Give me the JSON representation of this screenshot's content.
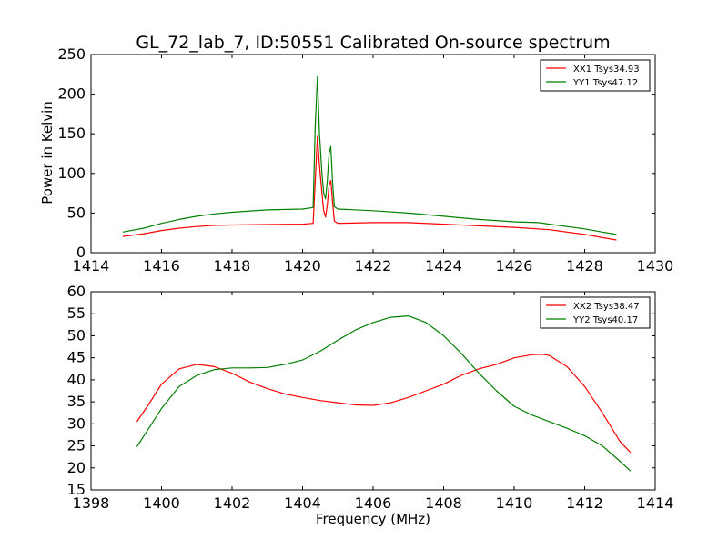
{
  "chart_data": [
    {
      "type": "line",
      "title": "GL_72_lab_7, ID:50551 Calibrated On-source spectrum",
      "xlabel": "",
      "ylabel": "Power in Kelvin",
      "xlim": [
        1414,
        1430
      ],
      "ylim": [
        0,
        250
      ],
      "xticks": [
        1414,
        1416,
        1418,
        1420,
        1422,
        1424,
        1426,
        1428,
        1430
      ],
      "yticks": [
        0,
        50,
        100,
        150,
        200,
        250
      ],
      "grid": false,
      "legend_position": "top-right",
      "series": [
        {
          "name": "XX1 Tsys34.93",
          "color": "#ff0000",
          "points": [
            [
              1414.9,
              20.5
            ],
            [
              1415.5,
              24
            ],
            [
              1416,
              28
            ],
            [
              1416.5,
              31
            ],
            [
              1417,
              33
            ],
            [
              1417.5,
              34.5
            ],
            [
              1418,
              35
            ],
            [
              1419,
              35.5
            ],
            [
              1420,
              36
            ],
            [
              1420.3,
              37
            ],
            [
              1420.36,
              90
            ],
            [
              1420.42,
              147
            ],
            [
              1420.48,
              110
            ],
            [
              1420.55,
              75
            ],
            [
              1420.6,
              53
            ],
            [
              1420.65,
              45
            ],
            [
              1420.7,
              60
            ],
            [
              1420.75,
              85
            ],
            [
              1420.8,
              91
            ],
            [
              1420.85,
              65
            ],
            [
              1420.9,
              40
            ],
            [
              1421,
              37
            ],
            [
              1422,
              38
            ],
            [
              1423,
              38
            ],
            [
              1424,
              36
            ],
            [
              1425,
              34
            ],
            [
              1426,
              32
            ],
            [
              1427,
              29
            ],
            [
              1428,
              23
            ],
            [
              1428.5,
              19
            ],
            [
              1428.9,
              16
            ]
          ]
        },
        {
          "name": "YY1 Tsys47.12",
          "color": "#008000",
          "points": [
            [
              1414.9,
              26
            ],
            [
              1415.5,
              31
            ],
            [
              1416,
              37
            ],
            [
              1416.5,
              42
            ],
            [
              1417,
              46
            ],
            [
              1417.5,
              49
            ],
            [
              1418,
              51
            ],
            [
              1419,
              54
            ],
            [
              1420,
              55
            ],
            [
              1420.3,
              57
            ],
            [
              1420.36,
              160
            ],
            [
              1420.42,
              222
            ],
            [
              1420.48,
              150
            ],
            [
              1420.55,
              100
            ],
            [
              1420.6,
              75
            ],
            [
              1420.65,
              68
            ],
            [
              1420.7,
              90
            ],
            [
              1420.75,
              125
            ],
            [
              1420.8,
              134
            ],
            [
              1420.85,
              90
            ],
            [
              1420.9,
              58
            ],
            [
              1421,
              55
            ],
            [
              1422,
              53
            ],
            [
              1423,
              50
            ],
            [
              1424,
              46
            ],
            [
              1425,
              42
            ],
            [
              1426,
              39
            ],
            [
              1426.7,
              38
            ],
            [
              1427,
              36
            ],
            [
              1428,
              30
            ],
            [
              1428.5,
              26
            ],
            [
              1428.9,
              23
            ]
          ]
        }
      ]
    },
    {
      "type": "line",
      "title": "",
      "xlabel": "Frequency (MHz)",
      "ylabel": "",
      "xlim": [
        1398,
        1414
      ],
      "ylim": [
        15,
        60
      ],
      "xticks": [
        1398,
        1400,
        1402,
        1404,
        1406,
        1408,
        1410,
        1412,
        1414
      ],
      "yticks": [
        15,
        20,
        25,
        30,
        35,
        40,
        45,
        50,
        55,
        60
      ],
      "grid": false,
      "legend_position": "top-right",
      "series": [
        {
          "name": "XX2 Tsys38.47",
          "color": "#ff0000",
          "points": [
            [
              1399.3,
              30.5
            ],
            [
              1399.6,
              34
            ],
            [
              1400,
              39
            ],
            [
              1400.5,
              42.5
            ],
            [
              1401,
              43.5
            ],
            [
              1401.5,
              43
            ],
            [
              1402,
              41.5
            ],
            [
              1402.5,
              39.5
            ],
            [
              1403,
              38
            ],
            [
              1403.5,
              36.8
            ],
            [
              1404,
              36
            ],
            [
              1404.5,
              35.3
            ],
            [
              1405,
              34.8
            ],
            [
              1405.5,
              34.3
            ],
            [
              1406,
              34.2
            ],
            [
              1406.5,
              34.8
            ],
            [
              1407,
              36
            ],
            [
              1407.5,
              37.5
            ],
            [
              1408,
              39
            ],
            [
              1408.5,
              41
            ],
            [
              1409,
              42.5
            ],
            [
              1409.5,
              43.5
            ],
            [
              1410,
              45
            ],
            [
              1410.5,
              45.7
            ],
            [
              1410.8,
              45.8
            ],
            [
              1411,
              45.5
            ],
            [
              1411.5,
              43
            ],
            [
              1412,
              38.5
            ],
            [
              1412.5,
              32.5
            ],
            [
              1413,
              26
            ],
            [
              1413.3,
              23.5
            ]
          ]
        },
        {
          "name": "YY2 Tsys40.17",
          "color": "#008000",
          "points": [
            [
              1399.3,
              24.8
            ],
            [
              1399.6,
              28.5
            ],
            [
              1400,
              33.5
            ],
            [
              1400.5,
              38.5
            ],
            [
              1401,
              41
            ],
            [
              1401.5,
              42.3
            ],
            [
              1402,
              42.7
            ],
            [
              1402.5,
              42.7
            ],
            [
              1403,
              42.8
            ],
            [
              1403.5,
              43.5
            ],
            [
              1404,
              44.5
            ],
            [
              1404.5,
              46.5
            ],
            [
              1405,
              49
            ],
            [
              1405.5,
              51.3
            ],
            [
              1406,
              53
            ],
            [
              1406.5,
              54.2
            ],
            [
              1407,
              54.5
            ],
            [
              1407.5,
              53
            ],
            [
              1408,
              50
            ],
            [
              1408.5,
              46
            ],
            [
              1409,
              41.5
            ],
            [
              1409.5,
              37.5
            ],
            [
              1410,
              34
            ],
            [
              1410.5,
              32
            ],
            [
              1411,
              30.5
            ],
            [
              1411.5,
              29
            ],
            [
              1412,
              27.3
            ],
            [
              1412.5,
              25
            ],
            [
              1413,
              21.5
            ],
            [
              1413.3,
              19.3
            ]
          ]
        }
      ]
    }
  ]
}
